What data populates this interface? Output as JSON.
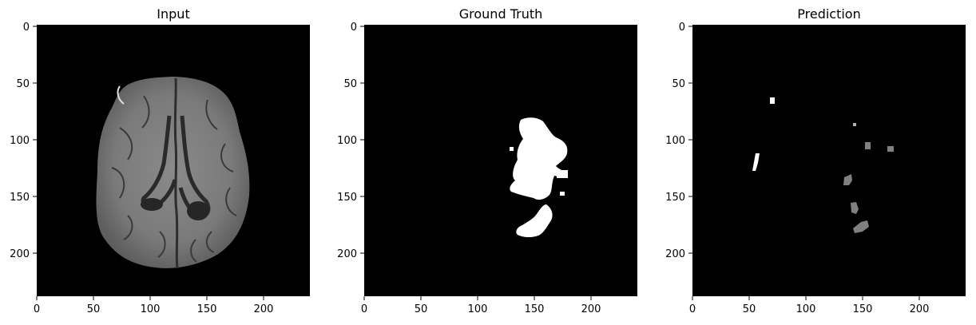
{
  "panels": [
    {
      "title": "Input"
    },
    {
      "title": "Ground Truth"
    },
    {
      "title": "Prediction"
    }
  ],
  "axes": {
    "x_ticks": [
      "0",
      "50",
      "100",
      "150",
      "200"
    ],
    "y_ticks": [
      "0",
      "50",
      "100",
      "150",
      "200"
    ]
  },
  "colors": {
    "background": "#000000",
    "mask": "#ffffff",
    "prediction_gray": "#808080",
    "brain_gray": "#7b7b7b"
  }
}
